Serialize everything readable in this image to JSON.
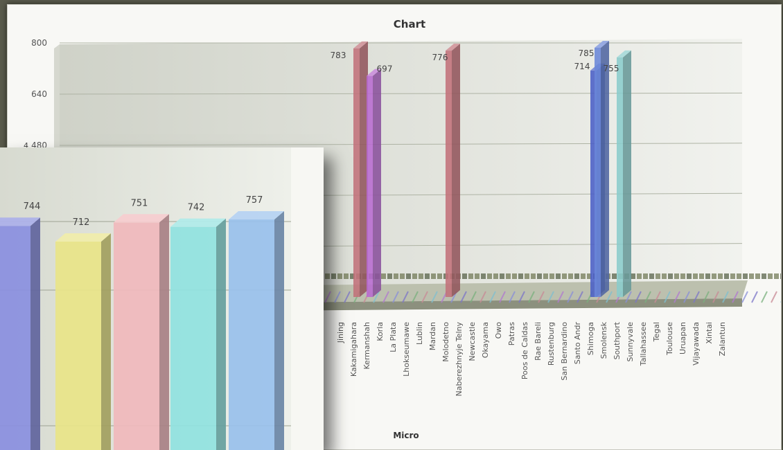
{
  "chart_data": [
    {
      "type": "bar",
      "title": "Chart",
      "xlabel": "Micro",
      "ylabel": "",
      "ylim": [
        0,
        800
      ],
      "yticks": [
        480,
        640,
        800
      ],
      "yticks_axis_prefix": "4",
      "grid": true,
      "categories": [
        "Jining",
        "Kakamigahara",
        "Kermanshah",
        "Korla",
        "La Plata",
        "Lhokseumawe",
        "Lublin",
        "Mardan",
        "Molodetno",
        "Naberezhnyje Telny",
        "Newcastle",
        "Okayama",
        "Owo",
        "Patras",
        "Poos de Caldas",
        "Rae Bareli",
        "Rustenburg",
        "San Bernardino",
        "Santo Andr",
        "Shimoga",
        "Smolensk",
        "Southport",
        "Sunnyvale",
        "Tallahassee",
        "Tegal",
        "Toulouse",
        "Uruapan",
        "Vijayawada",
        "Xintai",
        "Zalantun"
      ],
      "series": [
        {
          "color": "#c2717a",
          "values": [
            null,
            783,
            null,
            null,
            null,
            null,
            null,
            null,
            776,
            null,
            null,
            null,
            null,
            null,
            null,
            null,
            null,
            null,
            null,
            null,
            null,
            null,
            null,
            null,
            null,
            null,
            null,
            null,
            null,
            null
          ]
        },
        {
          "color": "#b86ad0",
          "values": [
            null,
            null,
            697,
            null,
            null,
            null,
            null,
            null,
            null,
            null,
            null,
            null,
            null,
            null,
            null,
            null,
            null,
            null,
            null,
            null,
            null,
            null,
            null,
            null,
            null,
            null,
            null,
            null,
            null,
            null
          ]
        },
        {
          "color": "#4a5fc6",
          "values": [
            null,
            null,
            null,
            null,
            null,
            null,
            null,
            null,
            null,
            null,
            null,
            null,
            null,
            null,
            null,
            null,
            null,
            null,
            null,
            714,
            null,
            null,
            null,
            null,
            null,
            null,
            null,
            null,
            null,
            null
          ]
        },
        {
          "color": "#6a86d8",
          "values": [
            null,
            null,
            null,
            null,
            null,
            null,
            null,
            null,
            null,
            null,
            null,
            null,
            null,
            null,
            null,
            null,
            null,
            null,
            null,
            785,
            null,
            null,
            null,
            null,
            null,
            null,
            null,
            null,
            null,
            null
          ]
        },
        {
          "color": "#8acccc",
          "values": [
            null,
            null,
            null,
            null,
            null,
            null,
            null,
            null,
            null,
            null,
            null,
            null,
            null,
            null,
            null,
            null,
            null,
            null,
            null,
            null,
            null,
            755,
            null,
            null,
            null,
            null,
            null,
            null,
            null,
            null
          ]
        }
      ],
      "value_labels": [
        "783",
        "697",
        "776",
        "714",
        "785",
        "755"
      ]
    },
    {
      "type": "bar",
      "values": [
        744,
        712,
        751,
        742,
        757
      ],
      "colors": [
        "#8a8fe0",
        "#e8e488",
        "#f0b8bc",
        "#90e2e0",
        "#98c0ec"
      ]
    }
  ]
}
